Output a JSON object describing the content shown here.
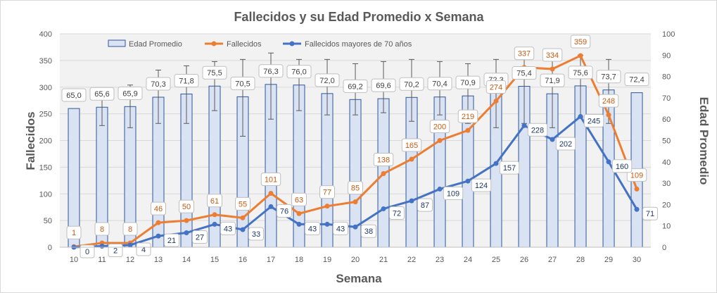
{
  "chart_data": {
    "type": "bar+line",
    "title": "Fallecidos y su Edad Promedio  x Semana",
    "xlabel": "Semana",
    "ylabel_left": "Fallecidos",
    "ylabel_right": "Edad Promedio",
    "ylim_left": [
      0,
      400
    ],
    "ylim_right": [
      0,
      100
    ],
    "yticks_left": [
      "0",
      "50",
      "100",
      "150",
      "200",
      "250",
      "300",
      "350",
      "400"
    ],
    "yticks_right": [
      "0",
      "10",
      "20",
      "30",
      "40",
      "50",
      "60",
      "70",
      "80",
      "90",
      "100"
    ],
    "grid": true,
    "legend_position": "top",
    "categories": [
      "10",
      "11",
      "12",
      "13",
      "14",
      "15",
      "16",
      "17",
      "18",
      "19",
      "20",
      "21",
      "22",
      "23",
      "24",
      "25",
      "26",
      "27",
      "28",
      "29",
      "30"
    ],
    "series": [
      {
        "name": "Edad Promedio",
        "kind": "bar",
        "axis": "right",
        "color": "#dae3f3",
        "border": "#2f5597",
        "values": [
          65.0,
          65.6,
          65.9,
          70.3,
          71.8,
          75.5,
          70.5,
          76.3,
          76.0,
          72.0,
          69.2,
          69.6,
          70.2,
          70.4,
          70.9,
          72.3,
          75.4,
          71.9,
          75.6,
          73.7,
          72.4
        ],
        "labels": [
          "65,0",
          "65,6",
          "65,9",
          "70,3",
          "71,8",
          "75,5",
          "70,5",
          "76,3",
          "76,0",
          "72,0",
          "69,2",
          "69,6",
          "70,2",
          "70,4",
          "70,9",
          "72,3",
          "75,4",
          "71,9",
          "75,6",
          "73,7",
          "72,4"
        ],
        "error_upper": [
          null,
          74,
          76,
          83,
          85,
          87,
          88,
          91,
          88,
          88,
          86,
          87,
          88,
          87,
          86,
          88,
          90,
          88,
          90,
          88,
          null
        ],
        "error_lower": [
          null,
          57,
          56,
          58,
          58,
          64,
          52,
          60,
          64,
          62,
          62,
          63,
          59,
          62,
          58,
          56,
          58,
          56,
          61,
          58,
          null
        ]
      },
      {
        "name": "Fallecidos",
        "kind": "line",
        "axis": "left",
        "color": "#ed7d31",
        "label_color": "#c55a11",
        "values": [
          1,
          8,
          8,
          46,
          50,
          61,
          55,
          101,
          63,
          77,
          85,
          138,
          165,
          200,
          219,
          274,
          337,
          334,
          359,
          248,
          109
        ],
        "labels": [
          "1",
          "8",
          "8",
          "46",
          "50",
          "61",
          "55",
          "101",
          "63",
          "77",
          "85",
          "138",
          "165",
          "200",
          "219",
          "274",
          "337",
          "334",
          "359",
          "248",
          "109"
        ]
      },
      {
        "name": "Fallecidos mayores de 70 años",
        "kind": "line",
        "axis": "left",
        "color": "#4472c4",
        "label_color": "#203864",
        "values": [
          0,
          2,
          4,
          21,
          27,
          43,
          33,
          76,
          43,
          43,
          38,
          72,
          87,
          109,
          124,
          157,
          228,
          202,
          245,
          160,
          71
        ],
        "labels": [
          "0",
          "2",
          "4",
          "21",
          "27",
          "43",
          "33",
          "76",
          "43",
          "43",
          "38",
          "72",
          "87",
          "109",
          "124",
          "157",
          "228",
          "202",
          "245",
          "160",
          "71"
        ]
      }
    ]
  }
}
